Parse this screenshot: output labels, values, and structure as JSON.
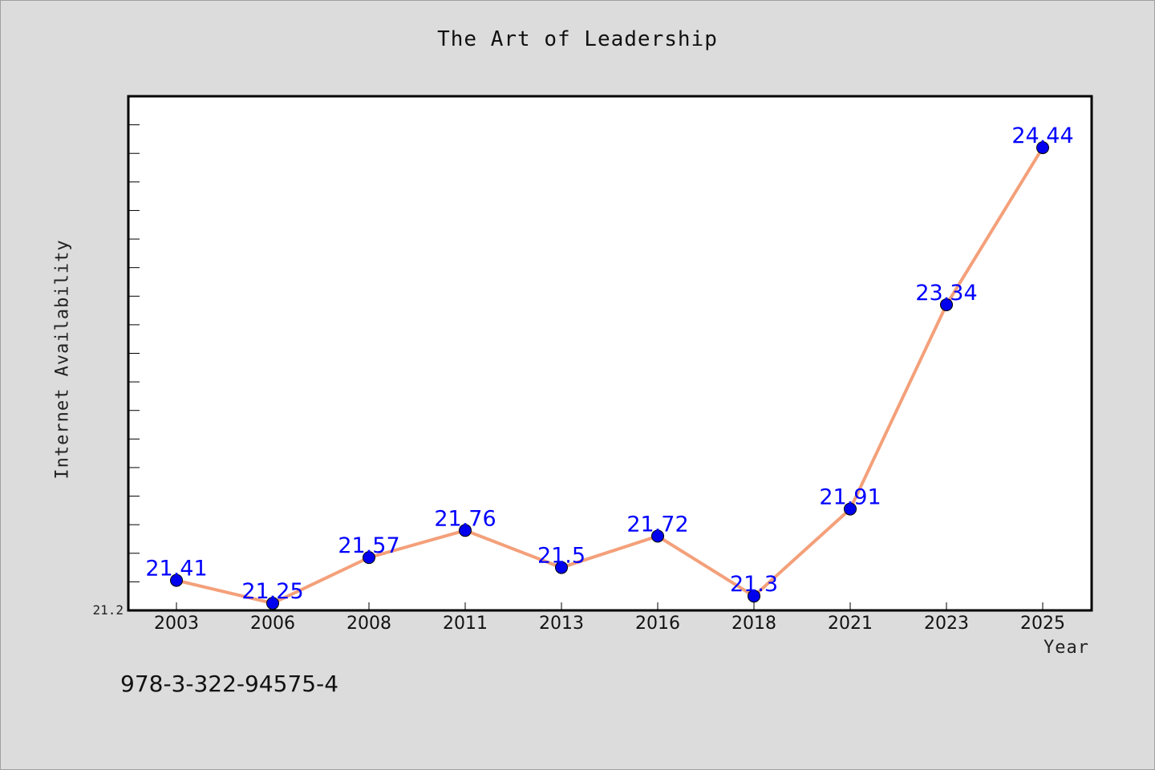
{
  "chart_data": {
    "type": "line",
    "title": "The Art of Leadership",
    "xlabel": "Year",
    "ylabel": "Internet Availability",
    "categories": [
      "2003",
      "2006",
      "2008",
      "2011",
      "2013",
      "2016",
      "2018",
      "2021",
      "2023",
      "2025"
    ],
    "series": [
      {
        "values": [
          21.41,
          21.25,
          21.57,
          21.76,
          21.5,
          21.72,
          21.3,
          21.91,
          23.34,
          24.44
        ],
        "labels": [
          "21.41",
          "21.25",
          "21.57",
          "21.76",
          "21.5",
          "21.72",
          "21.3",
          "21.91",
          "23.34",
          "24.44"
        ]
      }
    ],
    "yticks_labeled": [
      "21.2"
    ],
    "ylim": [
      21.2,
      24.8
    ],
    "grid": false,
    "colors": {
      "line": "#f4a07a",
      "marker": "#0000ee",
      "data_label": "#0000ff",
      "plot_background": "#ffffff",
      "page_background": "#dcdcdc"
    }
  },
  "footer": {
    "isbn": "978-3-322-94575-4"
  }
}
